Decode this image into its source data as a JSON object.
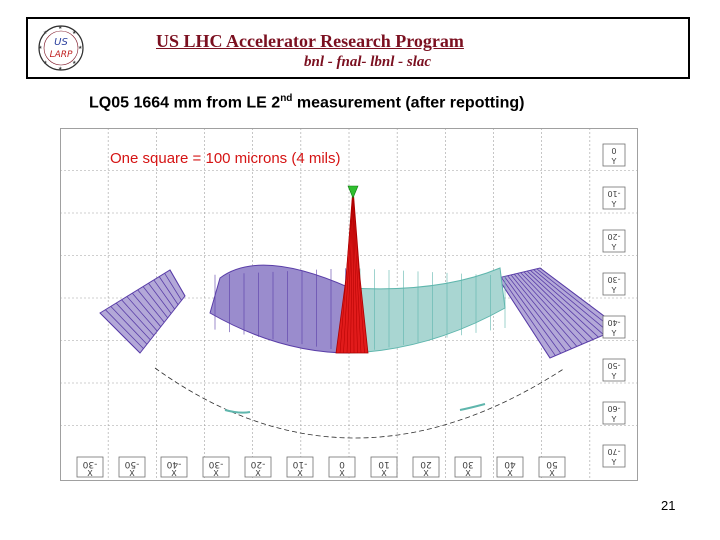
{
  "header": {
    "title": "US LHC Accelerator Research Program",
    "subtitle": "bnl - fnal- lbnl - slac",
    "logo": {
      "line1": "US",
      "line2": "LARP"
    }
  },
  "slide": {
    "title_main": "LQ05  1664 mm from LE 2",
    "title_sup": "nd",
    "title_rest": " measurement (after repotting)",
    "page_number": "21"
  },
  "plot": {
    "scale_note": "One square = 100 microns (4 mils)",
    "x_labels": [
      "-30",
      "-50",
      "-40",
      "-30",
      "-20",
      "-10",
      "0",
      "10",
      "20",
      "30",
      "40",
      "50"
    ],
    "x_axis_letter": "X",
    "y_labels": [
      "0",
      "-10",
      "-20",
      "-30",
      "-40",
      "-50",
      "-60",
      "-70"
    ],
    "y_axis_letter": "Y",
    "colors": {
      "grid": "#a0a0a0",
      "purple": "#5a3ea8",
      "teal": "#5fb6ad",
      "red": "#e11b1b",
      "green": "#2fbf2f"
    }
  }
}
